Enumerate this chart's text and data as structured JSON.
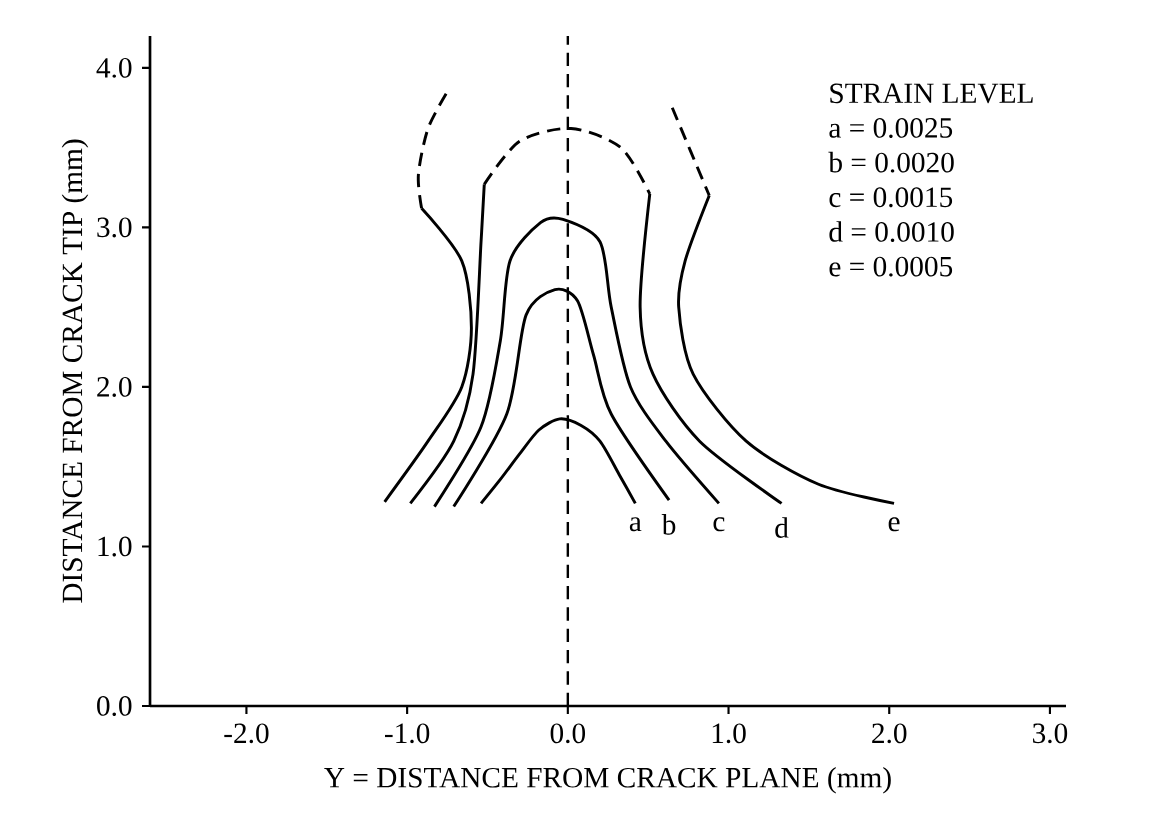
{
  "chart_data": {
    "type": "line",
    "xlabel": "Y = DISTANCE FROM CRACK PLANE (mm)",
    "ylabel": "DISTANCE FROM CRACK TIP (mm)",
    "legend_title": "STRAIN LEVEL",
    "annotations": [
      "a = 0.0025",
      "b = 0.0020",
      "c = 0.0015",
      "d = 0.0010",
      "e = 0.0005"
    ],
    "xlim": [
      -2.6,
      3.1
    ],
    "ylim": [
      0,
      4.2
    ],
    "xticks": [
      {
        "value": -2,
        "label": "-2.0"
      },
      {
        "value": -1,
        "label": "-1.0"
      },
      {
        "value": 0,
        "label": "0.0"
      },
      {
        "value": 1,
        "label": "1.0"
      },
      {
        "value": 2,
        "label": "2.0"
      },
      {
        "value": 3,
        "label": "3.0"
      }
    ],
    "yticks": [
      {
        "value": 0,
        "label": "0.0"
      },
      {
        "value": 1,
        "label": "1.0"
      },
      {
        "value": 2,
        "label": "2.0"
      },
      {
        "value": 3,
        "label": "3.0"
      },
      {
        "value": 4,
        "label": "4.0"
      }
    ],
    "marker": "none",
    "legend": false,
    "grid": false,
    "ref_lines": [
      {
        "axis": "x",
        "value": 0,
        "color": "#000000",
        "line_style": "dashed"
      }
    ],
    "series": [
      {
        "name": "a",
        "color": "#000000",
        "line_style": "solid",
        "x": [
          -0.54,
          -0.42,
          -0.3,
          -0.18,
          -0.05,
          0.08,
          0.2,
          0.32,
          0.42
        ],
        "values": [
          1.27,
          1.42,
          1.58,
          1.73,
          1.8,
          1.76,
          1.66,
          1.45,
          1.27
        ]
      },
      {
        "name": "b",
        "color": "#000000",
        "line_style": "solid",
        "x": [
          -0.71,
          -0.38,
          -0.26,
          -0.08,
          0.06,
          0.16,
          0.27,
          0.63
        ],
        "values": [
          1.25,
          1.83,
          2.45,
          2.61,
          2.54,
          2.2,
          1.83,
          1.29
        ]
      },
      {
        "name": "c",
        "color": "#000000",
        "line_style": "solid",
        "x": [
          -0.83,
          -0.54,
          -0.42,
          -0.36,
          -0.17,
          -0.03,
          0.2,
          0.27,
          0.39,
          0.61,
          0.94
        ],
        "values": [
          1.25,
          1.75,
          2.29,
          2.79,
          3.03,
          3.05,
          2.91,
          2.5,
          2.0,
          1.66,
          1.27
        ]
      },
      {
        "name": "d",
        "color": "#000000",
        "line_style": "solid",
        "x": [
          -0.98,
          -0.71,
          -0.59,
          -0.54,
          -0.52,
          null,
          0.51,
          0.45,
          0.53,
          0.82,
          1.33
        ],
        "values": [
          1.27,
          1.66,
          2.08,
          2.91,
          3.27,
          null,
          3.21,
          2.5,
          2.08,
          1.66,
          1.27
        ]
      },
      {
        "color": "#000000",
        "line_style": "dashed",
        "x": [
          -0.52,
          -0.3,
          0.02,
          0.33,
          0.51
        ],
        "values": [
          3.27,
          3.54,
          3.62,
          3.5,
          3.21
        ]
      },
      {
        "name": "e",
        "color": "#000000",
        "line_style": "solid",
        "x": [
          -0.91,
          -0.66,
          -0.6,
          -0.66,
          -0.87,
          -1.14,
          null,
          0.88,
          0.73,
          0.69,
          0.78,
          1.11,
          1.56,
          2.03
        ],
        "values": [
          3.12,
          2.79,
          2.37,
          2.0,
          1.66,
          1.28,
          null,
          3.2,
          2.79,
          2.5,
          2.08,
          1.66,
          1.39,
          1.27
        ]
      },
      {
        "color": "#000000",
        "line_style": "dashed",
        "x": [
          -0.91,
          -0.93,
          -0.87,
          -0.75
        ],
        "values": [
          3.12,
          3.33,
          3.62,
          3.85
        ]
      },
      {
        "color": "#000000",
        "line_style": "dashed",
        "x": [
          0.65,
          0.88
        ],
        "values": [
          3.75,
          3.2
        ]
      }
    ]
  }
}
